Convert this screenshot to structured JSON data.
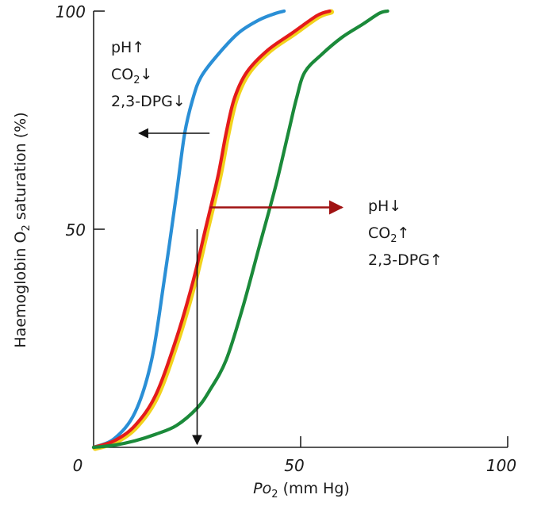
{
  "chart_data": {
    "type": "line",
    "xlabel": "Po",
    "xlabel_sub": "2",
    "xlabel_unit": " (mm Hg)",
    "ylabel": "Haemoglobin O",
    "ylabel_sub": "2",
    "ylabel_rest": " saturation (%)",
    "xlim": [
      0,
      100
    ],
    "ylim": [
      0,
      100
    ],
    "x_ticks": [
      0,
      50,
      100
    ],
    "y_ticks": [
      50,
      100
    ],
    "x_tick_labels": [
      "0",
      "50",
      "100"
    ],
    "y_tick_labels": [
      "50",
      "100"
    ],
    "grid": false,
    "series": [
      {
        "color": "#2a8fd6",
        "points": [
          [
            0,
            0
          ],
          [
            5,
            2
          ],
          [
            10,
            8
          ],
          [
            14,
            20
          ],
          [
            17,
            38
          ],
          [
            20,
            58
          ],
          [
            22,
            72
          ],
          [
            24,
            80
          ],
          [
            26,
            85
          ],
          [
            30,
            90
          ],
          [
            35,
            95
          ],
          [
            40,
            98
          ],
          [
            44,
            99.5
          ],
          [
            46,
            100
          ]
        ]
      },
      {
        "color": "#e41b1b",
        "points": [
          [
            0,
            0
          ],
          [
            5,
            1.5
          ],
          [
            10,
            5
          ],
          [
            15,
            12
          ],
          [
            20,
            25
          ],
          [
            24,
            38
          ],
          [
            27,
            50
          ],
          [
            30,
            62
          ],
          [
            32,
            72
          ],
          [
            34,
            80
          ],
          [
            37,
            86
          ],
          [
            42,
            91
          ],
          [
            48,
            95
          ],
          [
            54,
            99
          ],
          [
            57,
            100
          ]
        ]
      },
      {
        "color": "#1b8a3a",
        "points": [
          [
            0,
            0
          ],
          [
            5,
            0.5
          ],
          [
            10,
            1.5
          ],
          [
            15,
            3
          ],
          [
            20,
            5
          ],
          [
            25,
            9
          ],
          [
            28,
            13
          ],
          [
            32,
            20
          ],
          [
            36,
            32
          ],
          [
            40,
            46
          ],
          [
            44,
            60
          ],
          [
            47,
            72
          ],
          [
            49,
            80
          ],
          [
            51,
            86
          ],
          [
            55,
            90
          ],
          [
            60,
            94
          ],
          [
            65,
            97
          ],
          [
            69,
            99.5
          ],
          [
            71,
            100
          ]
        ]
      }
    ],
    "yellow_edge_color": "#f2d21b",
    "drop_line": {
      "x": 25,
      "y_from": 50,
      "y_to": 0
    },
    "arrow_left": {
      "y": 72,
      "x_from": 28,
      "x_to": 11
    },
    "arrow_right": {
      "y": 55,
      "x_from": 28,
      "x_to": 60,
      "color": "#a01212"
    },
    "annotations": {
      "left": [
        {
          "main": "pH",
          "arrow": "↑"
        },
        {
          "main": "CO",
          "sub": "2",
          "arrow": "↓"
        },
        {
          "main": "2,3-DPG",
          "arrow": "↓"
        }
      ],
      "right": [
        {
          "main": "pH",
          "arrow": "↓"
        },
        {
          "main": "CO",
          "sub": "2",
          "arrow": "↑"
        },
        {
          "main": "2,3-DPG",
          "arrow": "↑"
        }
      ]
    }
  }
}
